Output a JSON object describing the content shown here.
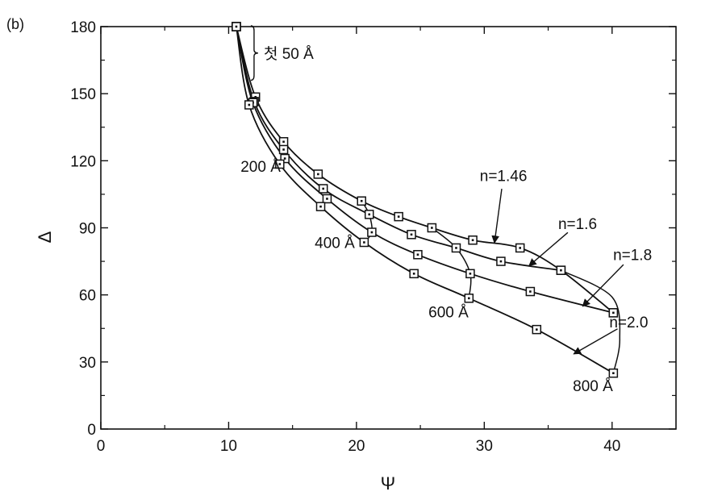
{
  "chart_data": {
    "type": "line",
    "panel_label": "(b)",
    "xlabel": "Ψ",
    "ylabel": "Δ",
    "xlim": [
      0,
      45
    ],
    "ylim": [
      0,
      180
    ],
    "xticks": [
      0,
      10,
      20,
      30,
      40
    ],
    "yticks": [
      0,
      30,
      60,
      90,
      120,
      150,
      180
    ],
    "series": [
      {
        "name": "n=1.46",
        "x": [
          10.6,
          12.1,
          14.3,
          17.0,
          20.4,
          23.3,
          25.9,
          29.1,
          32.8,
          36.0,
          40.1
        ],
        "y": [
          180,
          148.5,
          128.5,
          114,
          102,
          95,
          90,
          84.5,
          81,
          71,
          52
        ]
      },
      {
        "name": "n=1.6",
        "x": [
          10.6,
          12.0,
          14.3,
          17.4,
          21.0,
          24.3,
          27.8,
          31.3,
          36.0
        ],
        "y": [
          180,
          146.5,
          125,
          107.5,
          96,
          87,
          81,
          75,
          71
        ]
      },
      {
        "name": "n=1.8",
        "x": [
          10.6,
          11.9,
          14.4,
          17.7,
          21.2,
          24.8,
          28.9,
          33.6,
          40.1
        ],
        "y": [
          180,
          146,
          121,
          103,
          88,
          78,
          69.5,
          61.5,
          52
        ]
      },
      {
        "name": "n=2.0",
        "x": [
          10.6,
          11.6,
          14.0,
          17.2,
          20.6,
          24.5,
          28.8,
          34.1,
          40.1
        ],
        "y": [
          180,
          145,
          118.5,
          99.5,
          83.5,
          69.5,
          58.5,
          44.5,
          25
        ]
      }
    ],
    "thickness_curves": [
      {
        "x": [
          20.4,
          21.0,
          21.2,
          20.6
        ],
        "y": [
          102,
          96,
          88,
          83.5
        ]
      },
      {
        "x": [
          25.9,
          27.8,
          28.9,
          28.8
        ],
        "y": [
          90,
          81,
          69.5,
          58.5
        ]
      },
      {
        "x": [
          36.0,
          40.0,
          40.6,
          40.1
        ],
        "y": [
          71,
          59,
          40,
          25
        ]
      }
    ],
    "annotations": {
      "bracket": "첫 50 Å",
      "thickness": [
        {
          "text": "200 Å",
          "x": 12.5,
          "y": 115
        },
        {
          "text": "400 Å",
          "x": 18.3,
          "y": 81
        },
        {
          "text": "600 Å",
          "x": 27.2,
          "y": 50
        },
        {
          "text": "800 Å",
          "x": 38.5,
          "y": 17
        }
      ],
      "index_labels": [
        {
          "text": "n=1.46",
          "x": 31.5,
          "y": 111,
          "tip_x": 30.8,
          "tip_y": 83.3
        },
        {
          "text": "n=1.6",
          "x": 37.3,
          "y": 89.5,
          "tip_x": 33.5,
          "tip_y": 73.0
        },
        {
          "text": "n=1.8",
          "x": 41.6,
          "y": 75.5,
          "tip_x": 37.7,
          "tip_y": 54.9
        },
        {
          "text": "n=2.0",
          "x": 41.3,
          "y": 45.5,
          "tip_x": 37.0,
          "tip_y": 33.6
        }
      ]
    },
    "grid": false,
    "legend": "none"
  }
}
